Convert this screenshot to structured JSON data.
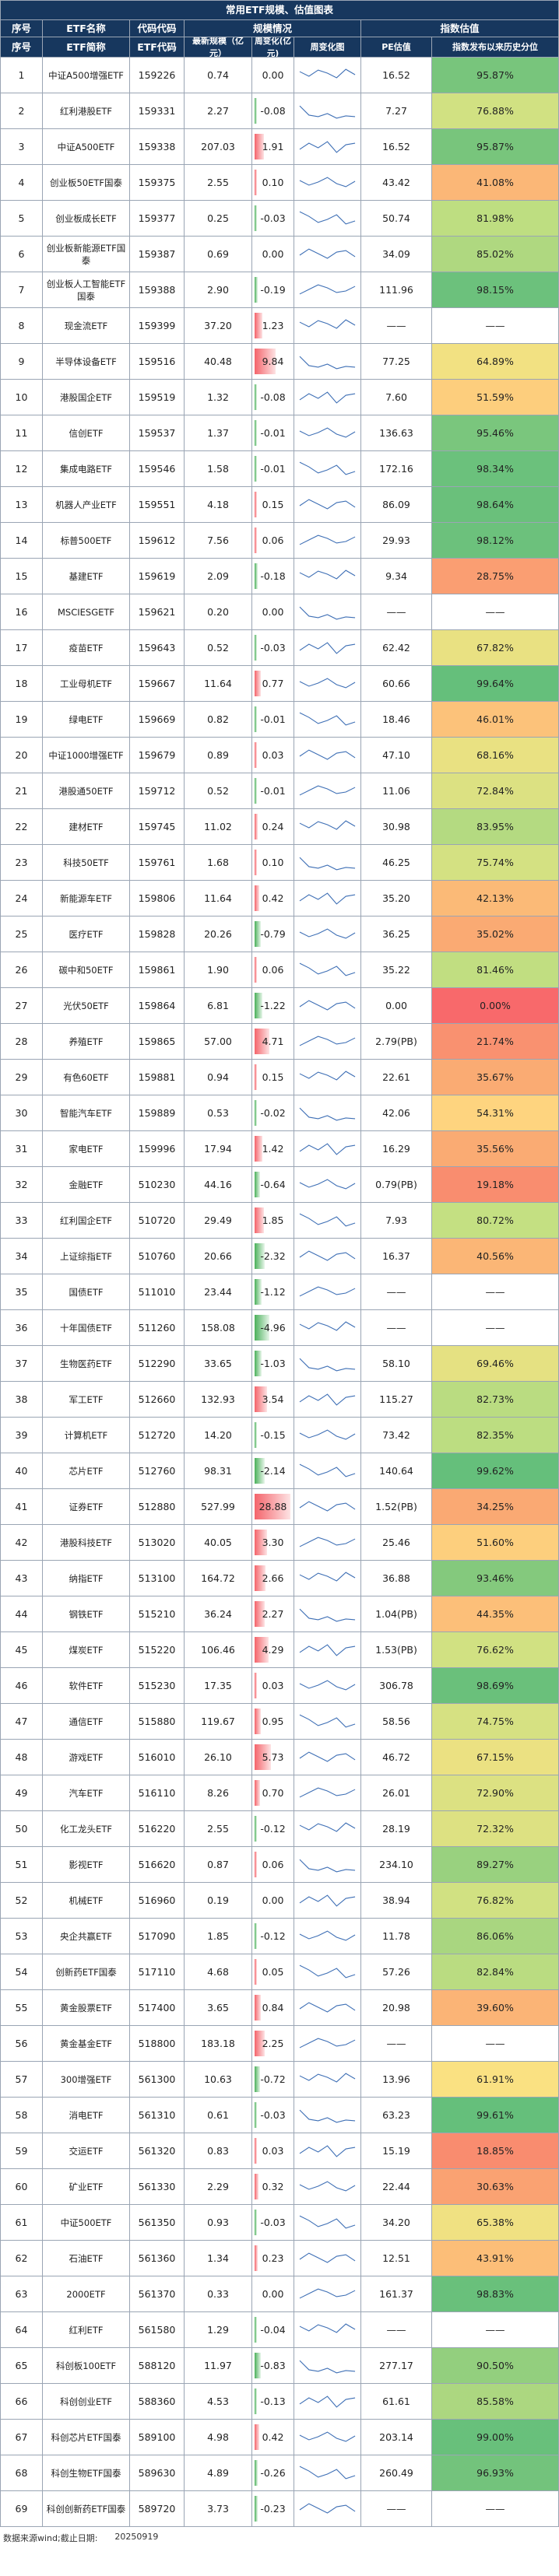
{
  "title": "常用ETF规模、估值图表",
  "group_headers": {
    "scale": "规模情况",
    "valuation": "指数估值"
  },
  "headers": {
    "index": "序号",
    "name": "ETF名称",
    "code": "代码代码",
    "scale": "最新规模（亿元）",
    "change": "周变化(亿元)",
    "trend": "周变化图",
    "pe": "PE估值",
    "percentile": "指数发布以来历史分位"
  },
  "sub_headers": {
    "index": "序号",
    "name": "ETF简称",
    "code": "ETF代码"
  },
  "colors": {
    "header_bg": "#17375e",
    "pos_bar": "#f4646b",
    "neg_bar": "#4bb05b",
    "line": "#3e6fb5"
  },
  "rows": [
    {
      "idx": "1",
      "name": "中证A500增强ETF",
      "code": "159226",
      "scale": "0.74",
      "change": "0.00",
      "pe": "16.52",
      "pct": "95.87%",
      "pctv": 95.87
    },
    {
      "idx": "2",
      "name": "红利港股ETF",
      "code": "159331",
      "scale": "2.27",
      "change": "-0.08",
      "pe": "7.27",
      "pct": "76.88%",
      "pctv": 76.88
    },
    {
      "idx": "3",
      "name": "中证A500ETF",
      "code": "159338",
      "scale": "207.03",
      "change": "1.91",
      "pe": "16.52",
      "pct": "95.87%",
      "pctv": 95.87
    },
    {
      "idx": "4",
      "name": "创业板50ETF国泰",
      "code": "159375",
      "scale": "2.55",
      "change": "0.10",
      "pe": "43.42",
      "pct": "41.08%",
      "pctv": 41.08
    },
    {
      "idx": "5",
      "name": "创业板成长ETF",
      "code": "159377",
      "scale": "0.25",
      "change": "-0.03",
      "pe": "50.74",
      "pct": "81.98%",
      "pctv": 81.98
    },
    {
      "idx": "6",
      "name": "创业板新能源ETF国泰",
      "code": "159387",
      "scale": "0.69",
      "change": "0.00",
      "pe": "34.09",
      "pct": "85.02%",
      "pctv": 85.02
    },
    {
      "idx": "7",
      "name": "创业板人工智能ETF国泰",
      "code": "159388",
      "scale": "2.90",
      "change": "-0.19",
      "pe": "111.96",
      "pct": "98.15%",
      "pctv": 98.15
    },
    {
      "idx": "8",
      "name": "现金流ETF",
      "code": "159399",
      "scale": "37.20",
      "change": "1.23",
      "pe": "——",
      "pct": "——",
      "pctv": null
    },
    {
      "idx": "9",
      "name": "半导体设备ETF",
      "code": "159516",
      "scale": "40.48",
      "change": "9.84",
      "pe": "77.25",
      "pct": "64.89%",
      "pctv": 64.89
    },
    {
      "idx": "10",
      "name": "港股国企ETF",
      "code": "159519",
      "scale": "1.32",
      "change": "-0.08",
      "pe": "7.60",
      "pct": "51.59%",
      "pctv": 51.59
    },
    {
      "idx": "11",
      "name": "信创ETF",
      "code": "159537",
      "scale": "1.37",
      "change": "-0.01",
      "pe": "136.63",
      "pct": "95.46%",
      "pctv": 95.46
    },
    {
      "idx": "12",
      "name": "集成电路ETF",
      "code": "159546",
      "scale": "1.58",
      "change": "-0.01",
      "pe": "172.16",
      "pct": "98.34%",
      "pctv": 98.34
    },
    {
      "idx": "13",
      "name": "机器人产业ETF",
      "code": "159551",
      "scale": "4.18",
      "change": "0.15",
      "pe": "86.09",
      "pct": "98.64%",
      "pctv": 98.64
    },
    {
      "idx": "14",
      "name": "标普500ETF",
      "code": "159612",
      "scale": "7.56",
      "change": "0.06",
      "pe": "29.93",
      "pct": "98.12%",
      "pctv": 98.12
    },
    {
      "idx": "15",
      "name": "基建ETF",
      "code": "159619",
      "scale": "2.09",
      "change": "-0.18",
      "pe": "9.34",
      "pct": "28.75%",
      "pctv": 28.75
    },
    {
      "idx": "16",
      "name": "MSCIESGETF",
      "code": "159621",
      "scale": "0.20",
      "change": "0.00",
      "pe": "——",
      "pct": "——",
      "pctv": null
    },
    {
      "idx": "17",
      "name": "疫苗ETF",
      "code": "159643",
      "scale": "0.52",
      "change": "-0.03",
      "pe": "62.42",
      "pct": "67.82%",
      "pctv": 67.82
    },
    {
      "idx": "18",
      "name": "工业母机ETF",
      "code": "159667",
      "scale": "11.64",
      "change": "0.77",
      "pe": "60.66",
      "pct": "99.64%",
      "pctv": 99.64
    },
    {
      "idx": "19",
      "name": "绿电ETF",
      "code": "159669",
      "scale": "0.82",
      "change": "-0.01",
      "pe": "18.46",
      "pct": "46.01%",
      "pctv": 46.01
    },
    {
      "idx": "20",
      "name": "中证1000增强ETF",
      "code": "159679",
      "scale": "0.89",
      "change": "0.03",
      "pe": "47.10",
      "pct": "68.16%",
      "pctv": 68.16
    },
    {
      "idx": "21",
      "name": "港股通50ETF",
      "code": "159712",
      "scale": "0.52",
      "change": "-0.01",
      "pe": "11.06",
      "pct": "72.84%",
      "pctv": 72.84
    },
    {
      "idx": "22",
      "name": "建材ETF",
      "code": "159745",
      "scale": "11.02",
      "change": "0.24",
      "pe": "30.98",
      "pct": "83.95%",
      "pctv": 83.95
    },
    {
      "idx": "23",
      "name": "科技50ETF",
      "code": "159761",
      "scale": "1.68",
      "change": "0.10",
      "pe": "46.25",
      "pct": "75.74%",
      "pctv": 75.74
    },
    {
      "idx": "24",
      "name": "新能源车ETF",
      "code": "159806",
      "scale": "11.64",
      "change": "0.42",
      "pe": "35.20",
      "pct": "42.13%",
      "pctv": 42.13
    },
    {
      "idx": "25",
      "name": "医疗ETF",
      "code": "159828",
      "scale": "20.26",
      "change": "-0.79",
      "pe": "36.25",
      "pct": "35.02%",
      "pctv": 35.02
    },
    {
      "idx": "26",
      "name": "碳中和50ETF",
      "code": "159861",
      "scale": "1.90",
      "change": "0.06",
      "pe": "35.22",
      "pct": "81.46%",
      "pctv": 81.46
    },
    {
      "idx": "27",
      "name": "光伏50ETF",
      "code": "159864",
      "scale": "6.81",
      "change": "-1.22",
      "pe": "0.00",
      "pct": "0.00%",
      "pctv": 0
    },
    {
      "idx": "28",
      "name": "养殖ETF",
      "code": "159865",
      "scale": "57.00",
      "change": "4.71",
      "pe": "2.79(PB)",
      "pct": "21.74%",
      "pctv": 21.74
    },
    {
      "idx": "29",
      "name": "有色60ETF",
      "code": "159881",
      "scale": "0.94",
      "change": "0.15",
      "pe": "22.61",
      "pct": "35.67%",
      "pctv": 35.67
    },
    {
      "idx": "30",
      "name": "智能汽车ETF",
      "code": "159889",
      "scale": "0.53",
      "change": "-0.02",
      "pe": "42.06",
      "pct": "54.31%",
      "pctv": 54.31
    },
    {
      "idx": "31",
      "name": "家电ETF",
      "code": "159996",
      "scale": "17.94",
      "change": "1.42",
      "pe": "16.29",
      "pct": "35.56%",
      "pctv": 35.56
    },
    {
      "idx": "32",
      "name": "金融ETF",
      "code": "510230",
      "scale": "44.16",
      "change": "-0.64",
      "pe": "0.79(PB)",
      "pct": "19.18%",
      "pctv": 19.18
    },
    {
      "idx": "33",
      "name": "红利国企ETF",
      "code": "510720",
      "scale": "29.49",
      "change": "1.85",
      "pe": "7.93",
      "pct": "80.72%",
      "pctv": 80.72
    },
    {
      "idx": "34",
      "name": "上证综指ETF",
      "code": "510760",
      "scale": "20.66",
      "change": "-2.32",
      "pe": "16.37",
      "pct": "40.56%",
      "pctv": 40.56
    },
    {
      "idx": "35",
      "name": "国债ETF",
      "code": "511010",
      "scale": "23.44",
      "change": "-1.12",
      "pe": "——",
      "pct": "——",
      "pctv": null
    },
    {
      "idx": "36",
      "name": "十年国债ETF",
      "code": "511260",
      "scale": "158.08",
      "change": "-4.96",
      "pe": "——",
      "pct": "——",
      "pctv": null
    },
    {
      "idx": "37",
      "name": "生物医药ETF",
      "code": "512290",
      "scale": "33.65",
      "change": "-1.03",
      "pe": "58.10",
      "pct": "69.46%",
      "pctv": 69.46
    },
    {
      "idx": "38",
      "name": "军工ETF",
      "code": "512660",
      "scale": "132.93",
      "change": "3.54",
      "pe": "115.27",
      "pct": "82.73%",
      "pctv": 82.73
    },
    {
      "idx": "39",
      "name": "计算机ETF",
      "code": "512720",
      "scale": "14.20",
      "change": "-0.15",
      "pe": "73.42",
      "pct": "82.35%",
      "pctv": 82.35
    },
    {
      "idx": "40",
      "name": "芯片ETF",
      "code": "512760",
      "scale": "98.31",
      "change": "-2.14",
      "pe": "140.64",
      "pct": "99.62%",
      "pctv": 99.62
    },
    {
      "idx": "41",
      "name": "证券ETF",
      "code": "512880",
      "scale": "527.99",
      "change": "28.88",
      "pe": "1.52(PB)",
      "pct": "34.25%",
      "pctv": 34.25
    },
    {
      "idx": "42",
      "name": "港股科技ETF",
      "code": "513020",
      "scale": "40.05",
      "change": "3.30",
      "pe": "25.46",
      "pct": "51.60%",
      "pctv": 51.6
    },
    {
      "idx": "43",
      "name": "纳指ETF",
      "code": "513100",
      "scale": "164.72",
      "change": "2.66",
      "pe": "36.88",
      "pct": "93.46%",
      "pctv": 93.46
    },
    {
      "idx": "44",
      "name": "钢铁ETF",
      "code": "515210",
      "scale": "36.24",
      "change": "2.27",
      "pe": "1.04(PB)",
      "pct": "44.35%",
      "pctv": 44.35
    },
    {
      "idx": "45",
      "name": "煤炭ETF",
      "code": "515220",
      "scale": "106.46",
      "change": "4.29",
      "pe": "1.53(PB)",
      "pct": "76.62%",
      "pctv": 76.62
    },
    {
      "idx": "46",
      "name": "软件ETF",
      "code": "515230",
      "scale": "17.35",
      "change": "0.03",
      "pe": "306.78",
      "pct": "98.69%",
      "pctv": 98.69
    },
    {
      "idx": "47",
      "name": "通信ETF",
      "code": "515880",
      "scale": "119.67",
      "change": "0.95",
      "pe": "58.56",
      "pct": "74.75%",
      "pctv": 74.75
    },
    {
      "idx": "48",
      "name": "游戏ETF",
      "code": "516010",
      "scale": "26.10",
      "change": "5.73",
      "pe": "46.72",
      "pct": "67.15%",
      "pctv": 67.15
    },
    {
      "idx": "49",
      "name": "汽车ETF",
      "code": "516110",
      "scale": "8.26",
      "change": "0.70",
      "pe": "26.01",
      "pct": "72.90%",
      "pctv": 72.9
    },
    {
      "idx": "50",
      "name": "化工龙头ETF",
      "code": "516220",
      "scale": "2.55",
      "change": "-0.12",
      "pe": "28.19",
      "pct": "72.32%",
      "pctv": 72.32
    },
    {
      "idx": "51",
      "name": "影视ETF",
      "code": "516620",
      "scale": "0.87",
      "change": "0.06",
      "pe": "234.10",
      "pct": "89.27%",
      "pctv": 89.27
    },
    {
      "idx": "52",
      "name": "机械ETF",
      "code": "516960",
      "scale": "0.19",
      "change": "0.00",
      "pe": "38.94",
      "pct": "76.82%",
      "pctv": 76.82
    },
    {
      "idx": "53",
      "name": "央企共赢ETF",
      "code": "517090",
      "scale": "1.85",
      "change": "-0.12",
      "pe": "11.78",
      "pct": "86.06%",
      "pctv": 86.06
    },
    {
      "idx": "54",
      "name": "创新药ETF国泰",
      "code": "517110",
      "scale": "4.68",
      "change": "0.05",
      "pe": "57.26",
      "pct": "82.84%",
      "pctv": 82.84
    },
    {
      "idx": "55",
      "name": "黄金股票ETF",
      "code": "517400",
      "scale": "3.65",
      "change": "0.84",
      "pe": "20.98",
      "pct": "39.60%",
      "pctv": 39.6
    },
    {
      "idx": "56",
      "name": "黄金基金ETF",
      "code": "518800",
      "scale": "183.18",
      "change": "2.25",
      "pe": "——",
      "pct": "——",
      "pctv": null
    },
    {
      "idx": "57",
      "name": "300增强ETF",
      "code": "561300",
      "scale": "10.63",
      "change": "-0.72",
      "pe": "13.96",
      "pct": "61.91%",
      "pctv": 61.91
    },
    {
      "idx": "58",
      "name": "消电ETF",
      "code": "561310",
      "scale": "0.61",
      "change": "-0.03",
      "pe": "63.23",
      "pct": "99.61%",
      "pctv": 99.61
    },
    {
      "idx": "59",
      "name": "交运ETF",
      "code": "561320",
      "scale": "0.83",
      "change": "0.03",
      "pe": "15.19",
      "pct": "18.85%",
      "pctv": 18.85
    },
    {
      "idx": "60",
      "name": "矿业ETF",
      "code": "561330",
      "scale": "2.29",
      "change": "0.32",
      "pe": "22.44",
      "pct": "30.63%",
      "pctv": 30.63
    },
    {
      "idx": "61",
      "name": "中证500ETF",
      "code": "561350",
      "scale": "0.93",
      "change": "-0.03",
      "pe": "34.20",
      "pct": "65.38%",
      "pctv": 65.38
    },
    {
      "idx": "62",
      "name": "石油ETF",
      "code": "561360",
      "scale": "1.34",
      "change": "0.23",
      "pe": "12.51",
      "pct": "43.91%",
      "pctv": 43.91
    },
    {
      "idx": "63",
      "name": "2000ETF",
      "code": "561370",
      "scate": "",
      "scale": "0.33",
      "change": "0.00",
      "pe": "161.37",
      "pct": "98.83%",
      "pctv": 98.83
    },
    {
      "idx": "64",
      "name": "红利ETF",
      "code": "561580",
      "scale": "1.29",
      "change": "-0.04",
      "pe": "——",
      "pct": "——",
      "pctv": null
    },
    {
      "idx": "65",
      "name": "科创板100ETF",
      "code": "588120",
      "scale": "11.97",
      "change": "-0.83",
      "pe": "277.17",
      "pct": "90.50%",
      "pctv": 90.5
    },
    {
      "idx": "66",
      "name": "科创创业ETF",
      "code": "588360",
      "scale": "4.53",
      "change": "-0.13",
      "pe": "61.61",
      "pct": "85.58%",
      "pctv": 85.58
    },
    {
      "idx": "67",
      "name": "科创芯片ETF国泰",
      "code": "589100",
      "scale": "4.98",
      "change": "0.42",
      "pe": "203.14",
      "pct": "99.00%",
      "pctv": 99.0
    },
    {
      "idx": "68",
      "name": "科创生物ETF国泰",
      "code": "589630",
      "scale": "4.89",
      "change": "-0.26",
      "pe": "260.49",
      "pct": "96.93%",
      "pctv": 96.93
    },
    {
      "idx": "69",
      "name": "科创创新药ETF国泰",
      "code": "589720",
      "scale": "3.73",
      "change": "-0.23",
      "pe": "——",
      "pct": "——",
      "pctv": null
    }
  ],
  "footer": {
    "source": "数据来源wind;截止日期:",
    "date": "20250919"
  }
}
